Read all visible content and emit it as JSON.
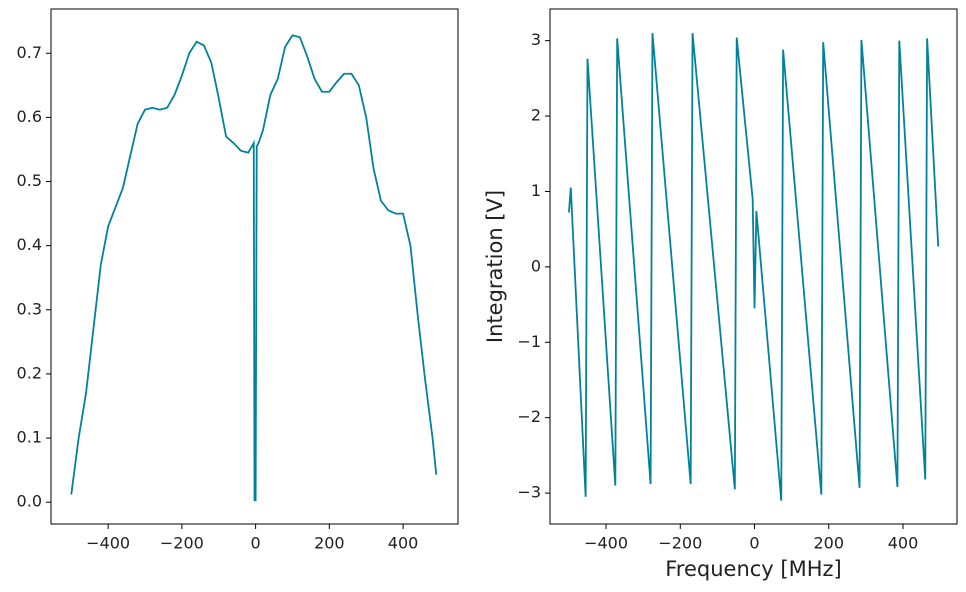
{
  "chart_data": [
    {
      "type": "line",
      "x": [
        -500,
        -480,
        -460,
        -440,
        -420,
        -400,
        -380,
        -360,
        -340,
        -320,
        -300,
        -280,
        -260,
        -240,
        -220,
        -200,
        -180,
        -160,
        -140,
        -120,
        -100,
        -80,
        -60,
        -40,
        -20,
        -5,
        -3,
        0,
        3,
        8,
        20,
        40,
        60,
        80,
        100,
        120,
        140,
        160,
        180,
        200,
        220,
        240,
        260,
        280,
        300,
        320,
        340,
        360,
        380,
        400,
        420,
        440,
        460,
        480,
        490
      ],
      "series": [
        {
          "color": "#00829a",
          "values": [
            0.012,
            0.1,
            0.17,
            0.27,
            0.37,
            0.43,
            0.46,
            0.49,
            0.54,
            0.59,
            0.612,
            0.615,
            0.612,
            0.615,
            0.635,
            0.665,
            0.7,
            0.718,
            0.712,
            0.685,
            0.63,
            0.57,
            0.56,
            0.548,
            0.545,
            0.56,
            0.003,
            0.003,
            0.555,
            0.56,
            0.58,
            0.635,
            0.66,
            0.71,
            0.728,
            0.725,
            0.695,
            0.66,
            0.64,
            0.64,
            0.655,
            0.668,
            0.668,
            0.65,
            0.6,
            0.52,
            0.47,
            0.455,
            0.45,
            0.45,
            0.4,
            0.29,
            0.19,
            0.1,
            0.043
          ]
        }
      ],
      "xlim": [
        -555,
        549
      ],
      "xticks": [
        {
          "value": -400,
          "label": "−400"
        },
        {
          "value": -200,
          "label": "−200"
        },
        0,
        200,
        400
      ],
      "ylim": [
        -0.034,
        0.769
      ],
      "yticks": [
        {
          "value": 0,
          "label": "0.0"
        },
        0.1,
        0.2,
        0.3,
        0.4,
        0.5,
        0.6,
        0.7
      ]
    },
    {
      "type": "line",
      "xlabel": "Frequency [MHz]",
      "ylabel": "Integration [V]",
      "x": [
        -500,
        -495,
        -455,
        -450,
        -375,
        -370,
        -280,
        -275,
        -172,
        -167,
        -53,
        -48,
        -5,
        0,
        5,
        72,
        77,
        180,
        185,
        283,
        288,
        385,
        390,
        460,
        465,
        495
      ],
      "series": [
        {
          "color": "#00829a",
          "values": [
            0.72,
            1.05,
            -3.05,
            2.76,
            -2.9,
            3.03,
            -2.88,
            3.1,
            -2.88,
            3.1,
            -2.95,
            3.04,
            0.9,
            -0.55,
            0.74,
            -3.1,
            2.88,
            -3.02,
            2.98,
            -2.93,
            3.01,
            -2.92,
            3.0,
            -2.82,
            3.03,
            0.27
          ]
        }
      ],
      "xlim": [
        -551,
        545.5
      ],
      "xticks": [
        {
          "value": -400,
          "label": "−400"
        },
        {
          "value": -200,
          "label": "−200"
        },
        0,
        200,
        400
      ],
      "ylim": [
        -3.41,
        3.42
      ],
      "yticks": [
        {
          "value": -3,
          "label": "−3"
        },
        {
          "value": -2,
          "label": "−2"
        },
        {
          "value": -1,
          "label": "−1"
        },
        0,
        1,
        2,
        3
      ]
    }
  ]
}
